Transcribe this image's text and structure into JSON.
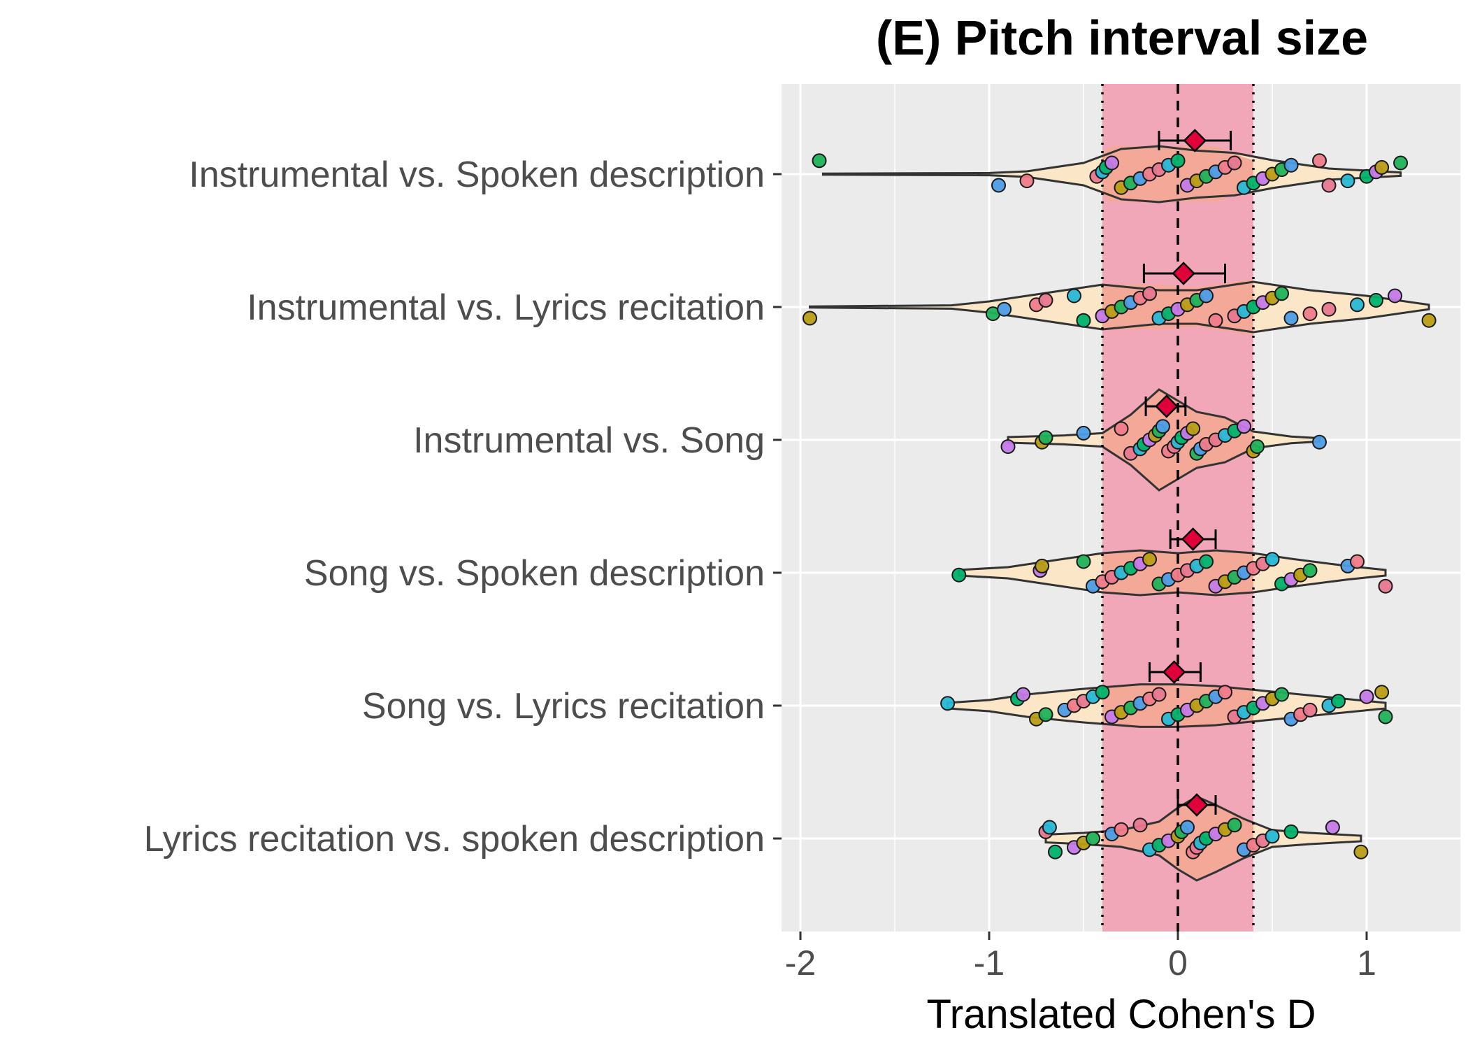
{
  "chart_data": {
    "type": "violin",
    "title": "(E) Pitch interval size",
    "xlabel": "Translated Cohen's D",
    "ylabel": "",
    "xlim": [
      -2.1,
      1.5
    ],
    "xticks": [
      -2,
      -1,
      0,
      1
    ],
    "xtick_labels": [
      "-2",
      "-1",
      "0",
      "1"
    ],
    "equivalence_region": [
      -0.4,
      0.4
    ],
    "reference_line": 0,
    "grid": true,
    "colors": {
      "panel": "#ebebeb",
      "grid": "#ffffff",
      "band": "#f2a7b9",
      "violin_outer": "#fbe6c8",
      "violin_inner": "#f4a898",
      "mean_marker": "#e0003a",
      "point_palette": [
        "#1fb25a",
        "#00b36b",
        "#f07c8a",
        "#b99e15",
        "#28b8d6",
        "#4d9de8",
        "#c57ae8",
        "#e87890"
      ]
    },
    "categories": [
      {
        "label": "Instrumental vs. Spoken description",
        "mean": 0.09,
        "ci": [
          -0.1,
          0.28
        ],
        "range": [
          -1.9,
          1.18
        ],
        "outer_shape": [
          [
            -1.88,
            0.01
          ],
          [
            -1.0,
            0.02
          ],
          [
            -0.8,
            0.05
          ],
          [
            -0.5,
            0.2
          ],
          [
            -0.3,
            0.45
          ],
          [
            -0.1,
            0.5
          ],
          [
            0.1,
            0.42
          ],
          [
            0.3,
            0.38
          ],
          [
            0.5,
            0.25
          ],
          [
            0.8,
            0.1
          ],
          [
            1.18,
            0.03
          ]
        ],
        "inner_shape": [
          [
            -1.88,
            0.01
          ],
          [
            -1.0,
            0.02
          ],
          [
            -0.8,
            0.05
          ],
          [
            -0.5,
            0.15
          ],
          [
            -0.35,
            0.5
          ],
          [
            -0.2,
            0.5
          ],
          [
            0.0,
            0.5
          ],
          [
            0.2,
            0.5
          ],
          [
            0.35,
            0.3
          ],
          [
            0.5,
            0.15
          ],
          [
            0.8,
            0.1
          ],
          [
            1.18,
            0.03
          ]
        ],
        "points": [
          -1.9,
          -0.95,
          -0.8,
          -0.43,
          -0.4,
          -0.38,
          -0.35,
          -0.3,
          -0.25,
          -0.2,
          -0.15,
          -0.1,
          -0.05,
          0,
          0.05,
          0.1,
          0.15,
          0.2,
          0.25,
          0.3,
          0.35,
          0.4,
          0.45,
          0.5,
          0.55,
          0.6,
          0.75,
          0.8,
          0.9,
          1.0,
          1.05,
          1.08,
          1.18
        ]
      },
      {
        "label": "Instrumental vs. Lyrics recitation",
        "mean": 0.03,
        "ci": [
          -0.18,
          0.25
        ],
        "range": [
          -1.95,
          1.33
        ],
        "outer_shape": [
          [
            -1.95,
            0.01
          ],
          [
            -1.2,
            0.03
          ],
          [
            -1.0,
            0.1
          ],
          [
            -0.7,
            0.25
          ],
          [
            -0.4,
            0.4
          ],
          [
            -0.1,
            0.3
          ],
          [
            0.1,
            0.3
          ],
          [
            0.4,
            0.45
          ],
          [
            0.7,
            0.3
          ],
          [
            1.0,
            0.2
          ],
          [
            1.33,
            0.04
          ]
        ],
        "inner_shape": [
          [
            -1.95,
            0.01
          ],
          [
            -1.2,
            0.03
          ],
          [
            -1.0,
            0.1
          ],
          [
            -0.7,
            0.25
          ],
          [
            -0.4,
            0.4
          ],
          [
            -0.1,
            0.4
          ],
          [
            0.1,
            0.35
          ],
          [
            0.4,
            0.5
          ],
          [
            0.7,
            0.3
          ],
          [
            1.0,
            0.2
          ],
          [
            1.33,
            0.04
          ]
        ],
        "points": [
          -1.95,
          -0.98,
          -0.92,
          -0.75,
          -0.7,
          -0.55,
          -0.5,
          -0.4,
          -0.35,
          -0.3,
          -0.25,
          -0.2,
          -0.15,
          -0.1,
          -0.05,
          0,
          0.05,
          0.1,
          0.15,
          0.2,
          0.3,
          0.35,
          0.4,
          0.45,
          0.5,
          0.55,
          0.6,
          0.7,
          0.8,
          0.95,
          1.05,
          1.15,
          1.33
        ]
      },
      {
        "label": "Instrumental vs. Song",
        "mean": -0.06,
        "ci": [
          -0.17,
          0.04
        ],
        "range": [
          -0.9,
          0.75
        ],
        "outer_shape": [
          [
            -0.9,
            0.05
          ],
          [
            -0.6,
            0.08
          ],
          [
            -0.4,
            0.12
          ],
          [
            -0.25,
            0.45
          ],
          [
            -0.1,
            0.9
          ],
          [
            0.0,
            0.7
          ],
          [
            0.1,
            0.5
          ],
          [
            0.25,
            0.4
          ],
          [
            0.4,
            0.15
          ],
          [
            0.6,
            0.06
          ],
          [
            0.75,
            0.03
          ]
        ],
        "inner_shape": [
          [
            -0.9,
            0.05
          ],
          [
            -0.6,
            0.08
          ],
          [
            -0.4,
            0.12
          ],
          [
            -0.25,
            0.45
          ],
          [
            -0.1,
            0.9
          ],
          [
            0.0,
            0.7
          ],
          [
            0.1,
            0.5
          ],
          [
            0.25,
            0.4
          ],
          [
            0.4,
            0.15
          ],
          [
            0.6,
            0.06
          ],
          [
            0.75,
            0.03
          ]
        ],
        "points": [
          -0.9,
          -0.72,
          -0.7,
          -0.5,
          -0.3,
          -0.25,
          -0.2,
          -0.18,
          -0.15,
          -0.12,
          -0.1,
          -0.08,
          -0.05,
          -0.02,
          0,
          0.02,
          0.05,
          0.08,
          0.1,
          0.12,
          0.15,
          0.2,
          0.25,
          0.3,
          0.35,
          0.4,
          0.42,
          0.75
        ]
      },
      {
        "label": "Song vs. Spoken description",
        "mean": 0.08,
        "ci": [
          -0.04,
          0.2
        ],
        "range": [
          -1.16,
          1.1
        ],
        "outer_shape": [
          [
            -1.16,
            0.05
          ],
          [
            -0.9,
            0.1
          ],
          [
            -0.6,
            0.25
          ],
          [
            -0.4,
            0.35
          ],
          [
            -0.2,
            0.4
          ],
          [
            0.0,
            0.35
          ],
          [
            0.2,
            0.4
          ],
          [
            0.4,
            0.35
          ],
          [
            0.6,
            0.25
          ],
          [
            0.9,
            0.12
          ],
          [
            1.1,
            0.05
          ]
        ],
        "inner_shape": [
          [
            -1.16,
            0.05
          ],
          [
            -0.9,
            0.1
          ],
          [
            -0.6,
            0.25
          ],
          [
            -0.4,
            0.35
          ],
          [
            -0.2,
            0.4
          ],
          [
            0.0,
            0.35
          ],
          [
            0.2,
            0.4
          ],
          [
            0.4,
            0.35
          ],
          [
            0.6,
            0.25
          ],
          [
            0.9,
            0.12
          ],
          [
            1.1,
            0.05
          ]
        ],
        "points": [
          -1.16,
          -0.73,
          -0.72,
          -0.5,
          -0.45,
          -0.4,
          -0.35,
          -0.3,
          -0.25,
          -0.2,
          -0.15,
          -0.1,
          -0.05,
          0,
          0.05,
          0.1,
          0.15,
          0.2,
          0.25,
          0.3,
          0.35,
          0.4,
          0.45,
          0.5,
          0.55,
          0.6,
          0.65,
          0.7,
          0.9,
          0.95,
          1.1
        ]
      },
      {
        "label": "Song vs. Lyrics recitation",
        "mean": -0.02,
        "ci": [
          -0.15,
          0.12
        ],
        "range": [
          -1.22,
          1.1
        ],
        "outer_shape": [
          [
            -1.22,
            0.05
          ],
          [
            -1.0,
            0.1
          ],
          [
            -0.8,
            0.2
          ],
          [
            -0.5,
            0.3
          ],
          [
            -0.2,
            0.38
          ],
          [
            0.0,
            0.38
          ],
          [
            0.2,
            0.35
          ],
          [
            0.5,
            0.25
          ],
          [
            0.8,
            0.15
          ],
          [
            1.1,
            0.05
          ]
        ],
        "inner_shape": [
          [
            -1.22,
            0.05
          ],
          [
            -1.0,
            0.1
          ],
          [
            -0.8,
            0.2
          ],
          [
            -0.5,
            0.3
          ],
          [
            -0.2,
            0.38
          ],
          [
            0.0,
            0.38
          ],
          [
            0.2,
            0.35
          ],
          [
            0.5,
            0.25
          ],
          [
            0.8,
            0.15
          ],
          [
            1.1,
            0.05
          ]
        ],
        "points": [
          -1.22,
          -0.85,
          -0.82,
          -0.75,
          -0.7,
          -0.6,
          -0.55,
          -0.5,
          -0.45,
          -0.4,
          -0.35,
          -0.3,
          -0.25,
          -0.2,
          -0.15,
          -0.1,
          -0.05,
          0,
          0.05,
          0.1,
          0.15,
          0.2,
          0.25,
          0.3,
          0.35,
          0.4,
          0.45,
          0.5,
          0.55,
          0.6,
          0.65,
          0.7,
          0.8,
          0.85,
          1.0,
          1.08,
          1.1
        ]
      },
      {
        "label": "Lyrics recitation vs. spoken description",
        "mean": 0.1,
        "ci": [
          0.0,
          0.2
        ],
        "range": [
          -0.7,
          0.97
        ],
        "outer_shape": [
          [
            -0.7,
            0.07
          ],
          [
            -0.5,
            0.1
          ],
          [
            -0.3,
            0.15
          ],
          [
            -0.1,
            0.3
          ],
          [
            0.0,
            0.55
          ],
          [
            0.1,
            0.75
          ],
          [
            0.2,
            0.6
          ],
          [
            0.35,
            0.35
          ],
          [
            0.5,
            0.15
          ],
          [
            0.7,
            0.1
          ],
          [
            0.97,
            0.05
          ]
        ],
        "inner_shape": [
          [
            -0.7,
            0.07
          ],
          [
            -0.5,
            0.1
          ],
          [
            -0.3,
            0.15
          ],
          [
            -0.1,
            0.3
          ],
          [
            0.0,
            0.55
          ],
          [
            0.1,
            0.75
          ],
          [
            0.2,
            0.6
          ],
          [
            0.35,
            0.35
          ],
          [
            0.5,
            0.15
          ],
          [
            0.7,
            0.1
          ],
          [
            0.97,
            0.05
          ]
        ],
        "points": [
          -0.7,
          -0.68,
          -0.65,
          -0.55,
          -0.5,
          -0.45,
          -0.35,
          -0.3,
          -0.2,
          -0.15,
          -0.1,
          -0.05,
          0,
          0.02,
          0.05,
          0.08,
          0.1,
          0.12,
          0.15,
          0.2,
          0.25,
          0.3,
          0.35,
          0.4,
          0.45,
          0.5,
          0.6,
          0.82,
          0.97
        ]
      }
    ]
  }
}
